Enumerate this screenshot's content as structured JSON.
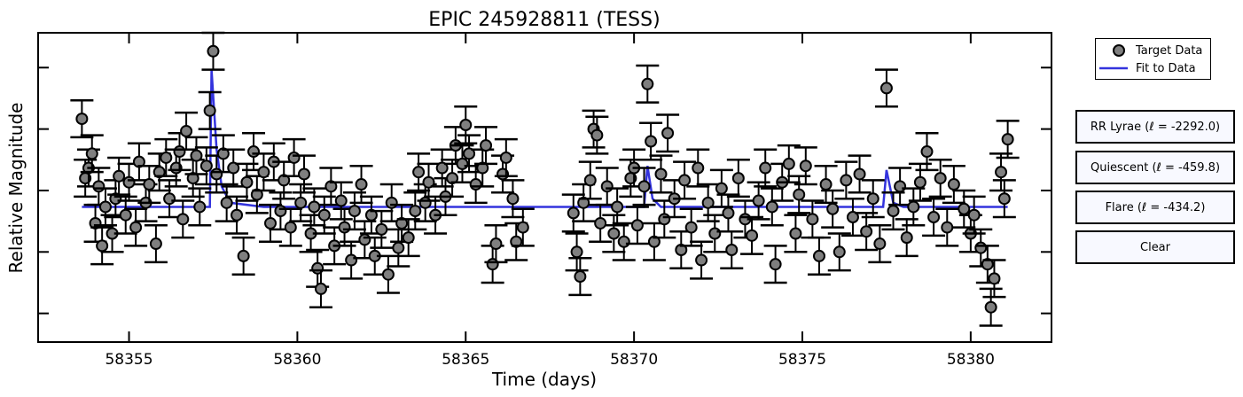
{
  "legend": {
    "target_label": "Target Data",
    "fit_label": "Fit to Data"
  },
  "buttons": {
    "rr_lyrae": "RR Lyrae (ℓ = -2292.0)",
    "quiescent": "Quiescent (ℓ = -459.8)",
    "flare": "Flare (ℓ = -434.2)",
    "clear": "Clear"
  },
  "colors": {
    "marker_fill": "#7f7f7f",
    "fit_line": "#3333dd",
    "button_bg": "#f8f9ff"
  },
  "chart_data": {
    "type": "scatter",
    "title": "EPIC 245928811 (TESS)",
    "xlabel": "Time (days)",
    "ylabel": "Relative Magnitude",
    "xlim": [
      58352.3,
      58382.4
    ],
    "ylim": [
      -3.7,
      3.85
    ],
    "x_ticks": [
      58355,
      58360,
      58365,
      58370,
      58375,
      58380
    ],
    "y_ticks": [
      -3,
      -1.5,
      0,
      1.5,
      3
    ],
    "y_tick_labels_shown": false,
    "grid": false,
    "legend_position": "outside-right-top",
    "error_bar": 0.45,
    "series": [
      {
        "name": "Target Data",
        "style": "markers-with-errorbars",
        "points": [
          [
            58353.6,
            1.75
          ],
          [
            58353.7,
            0.3
          ],
          [
            58353.8,
            0.55
          ],
          [
            58353.9,
            0.9
          ],
          [
            58354.0,
            -0.8
          ],
          [
            58354.1,
            0.1
          ],
          [
            58354.2,
            -1.35
          ],
          [
            58354.3,
            -0.4
          ],
          [
            58354.5,
            -1.05
          ],
          [
            58354.6,
            -0.2
          ],
          [
            58354.7,
            0.35
          ],
          [
            58354.9,
            -0.6
          ],
          [
            58355.0,
            0.2
          ],
          [
            58355.2,
            -0.9
          ],
          [
            58355.3,
            0.7
          ],
          [
            58355.5,
            -0.3
          ],
          [
            58355.6,
            0.15
          ],
          [
            58355.8,
            -1.3
          ],
          [
            58355.9,
            0.45
          ],
          [
            58356.1,
            0.8
          ],
          [
            58356.2,
            -0.2
          ],
          [
            58356.4,
            0.55
          ],
          [
            58356.5,
            0.95
          ],
          [
            58356.6,
            -0.7
          ],
          [
            58356.7,
            1.45
          ],
          [
            58356.9,
            0.3
          ],
          [
            58357.0,
            0.85
          ],
          [
            58357.1,
            -0.4
          ],
          [
            58357.3,
            0.6
          ],
          [
            58357.4,
            1.95
          ],
          [
            58357.5,
            3.4
          ],
          [
            58357.6,
            0.4
          ],
          [
            58357.8,
            0.9
          ],
          [
            58357.9,
            -0.3
          ],
          [
            58358.1,
            0.55
          ],
          [
            58358.2,
            -0.6
          ],
          [
            58358.4,
            -1.6
          ],
          [
            58358.5,
            0.2
          ],
          [
            58358.7,
            0.95
          ],
          [
            58358.8,
            -0.1
          ],
          [
            58359.0,
            0.45
          ],
          [
            58359.2,
            -0.8
          ],
          [
            58359.3,
            0.7
          ],
          [
            58359.5,
            -0.5
          ],
          [
            58359.6,
            0.25
          ],
          [
            58359.8,
            -0.9
          ],
          [
            58359.9,
            0.8
          ],
          [
            58360.1,
            -0.3
          ],
          [
            58360.2,
            0.4
          ],
          [
            58360.4,
            -1.05
          ],
          [
            58360.5,
            -0.4
          ],
          [
            58360.6,
            -1.9
          ],
          [
            58360.7,
            -2.4
          ],
          [
            58360.8,
            -0.6
          ],
          [
            58361.0,
            0.1
          ],
          [
            58361.1,
            -1.35
          ],
          [
            58361.3,
            -0.25
          ],
          [
            58361.4,
            -0.9
          ],
          [
            58361.6,
            -1.7
          ],
          [
            58361.7,
            -0.5
          ],
          [
            58361.9,
            0.15
          ],
          [
            58362.0,
            -1.2
          ],
          [
            58362.2,
            -0.6
          ],
          [
            58362.3,
            -1.6
          ],
          [
            58362.5,
            -0.95
          ],
          [
            58362.7,
            -2.05
          ],
          [
            58362.8,
            -0.3
          ],
          [
            58363.0,
            -1.4
          ],
          [
            58363.1,
            -0.8
          ],
          [
            58363.3,
            -1.15
          ],
          [
            58363.5,
            -0.5
          ],
          [
            58363.6,
            0.45
          ],
          [
            58363.8,
            -0.3
          ],
          [
            58363.9,
            0.2
          ],
          [
            58364.1,
            -0.6
          ],
          [
            58364.3,
            0.55
          ],
          [
            58364.4,
            -0.15
          ],
          [
            58364.6,
            0.3
          ],
          [
            58364.7,
            1.1
          ],
          [
            58364.9,
            0.65
          ],
          [
            58365.0,
            1.6
          ],
          [
            58365.1,
            0.9
          ],
          [
            58365.3,
            0.15
          ],
          [
            58365.5,
            0.55
          ],
          [
            58365.6,
            1.1
          ],
          [
            58365.8,
            -1.8
          ],
          [
            58365.9,
            -1.3
          ],
          [
            58366.1,
            0.4
          ],
          [
            58366.2,
            0.8
          ],
          [
            58366.4,
            -0.2
          ],
          [
            58366.5,
            -1.25
          ],
          [
            58366.7,
            -0.9
          ],
          [
            58368.2,
            -0.55
          ],
          [
            58368.3,
            -1.5
          ],
          [
            58368.4,
            -2.1
          ],
          [
            58368.5,
            -0.3
          ],
          [
            58368.7,
            0.25
          ],
          [
            58368.8,
            1.5
          ],
          [
            58368.9,
            1.35
          ],
          [
            58369.0,
            -0.8
          ],
          [
            58369.2,
            0.1
          ],
          [
            58369.4,
            -1.05
          ],
          [
            58369.5,
            -0.4
          ],
          [
            58369.7,
            -1.25
          ],
          [
            58369.9,
            0.3
          ],
          [
            58370.0,
            0.55
          ],
          [
            58370.1,
            -0.85
          ],
          [
            58370.3,
            0.1
          ],
          [
            58370.4,
            2.6
          ],
          [
            58370.5,
            1.2
          ],
          [
            58370.6,
            -1.25
          ],
          [
            58370.8,
            0.4
          ],
          [
            58370.9,
            -0.7
          ],
          [
            58371.0,
            1.4
          ],
          [
            58371.2,
            -0.2
          ],
          [
            58371.4,
            -1.45
          ],
          [
            58371.5,
            0.25
          ],
          [
            58371.7,
            -0.9
          ],
          [
            58371.9,
            0.55
          ],
          [
            58372.0,
            -1.7
          ],
          [
            58372.2,
            -0.3
          ],
          [
            58372.4,
            -1.05
          ],
          [
            58372.6,
            0.05
          ],
          [
            58372.8,
            -0.55
          ],
          [
            58372.9,
            -1.45
          ],
          [
            58373.1,
            0.3
          ],
          [
            58373.3,
            -0.7
          ],
          [
            58373.5,
            -1.1
          ],
          [
            58373.7,
            -0.25
          ],
          [
            58373.9,
            0.55
          ],
          [
            58374.1,
            -0.4
          ],
          [
            58374.2,
            -1.8
          ],
          [
            58374.4,
            0.2
          ],
          [
            58374.6,
            0.65
          ],
          [
            58374.8,
            -1.05
          ],
          [
            58374.9,
            -0.1
          ],
          [
            58375.1,
            0.6
          ],
          [
            58375.3,
            -0.7
          ],
          [
            58375.5,
            -1.6
          ],
          [
            58375.7,
            0.15
          ],
          [
            58375.9,
            -0.45
          ],
          [
            58376.1,
            -1.5
          ],
          [
            58376.3,
            0.25
          ],
          [
            58376.5,
            -0.65
          ],
          [
            58376.7,
            0.4
          ],
          [
            58376.9,
            -1.0
          ],
          [
            58377.1,
            -0.2
          ],
          [
            58377.3,
            -1.3
          ],
          [
            58377.5,
            2.5
          ],
          [
            58377.7,
            -0.5
          ],
          [
            58377.9,
            0.1
          ],
          [
            58378.1,
            -1.15
          ],
          [
            58378.3,
            -0.4
          ],
          [
            58378.5,
            0.2
          ],
          [
            58378.7,
            0.95
          ],
          [
            58378.9,
            -0.65
          ],
          [
            58379.1,
            0.3
          ],
          [
            58379.3,
            -0.9
          ],
          [
            58379.5,
            0.15
          ],
          [
            58379.8,
            -0.45
          ],
          [
            58380.0,
            -1.05
          ],
          [
            58380.1,
            -0.6
          ],
          [
            58380.3,
            -1.4
          ],
          [
            58380.5,
            -1.8
          ],
          [
            58380.6,
            -2.85
          ],
          [
            58380.7,
            -2.15
          ],
          [
            58380.9,
            0.45
          ],
          [
            58381.0,
            -0.2
          ],
          [
            58381.1,
            1.25
          ]
        ]
      },
      {
        "name": "Fit to Data",
        "style": "line",
        "points": [
          [
            58353.6,
            -0.4
          ],
          [
            58357.4,
            -0.4
          ],
          [
            58357.45,
            2.95
          ],
          [
            58357.6,
            1.0
          ],
          [
            58357.75,
            0.1
          ],
          [
            58358.0,
            -0.3
          ],
          [
            58359.0,
            -0.4
          ],
          [
            58370.3,
            -0.4
          ],
          [
            58370.4,
            0.6
          ],
          [
            58370.55,
            -0.2
          ],
          [
            58370.8,
            -0.4
          ],
          [
            58377.4,
            -0.4
          ],
          [
            58377.5,
            0.5
          ],
          [
            58377.7,
            -0.3
          ],
          [
            58378.0,
            -0.4
          ],
          [
            58381.1,
            -0.4
          ]
        ]
      }
    ]
  }
}
